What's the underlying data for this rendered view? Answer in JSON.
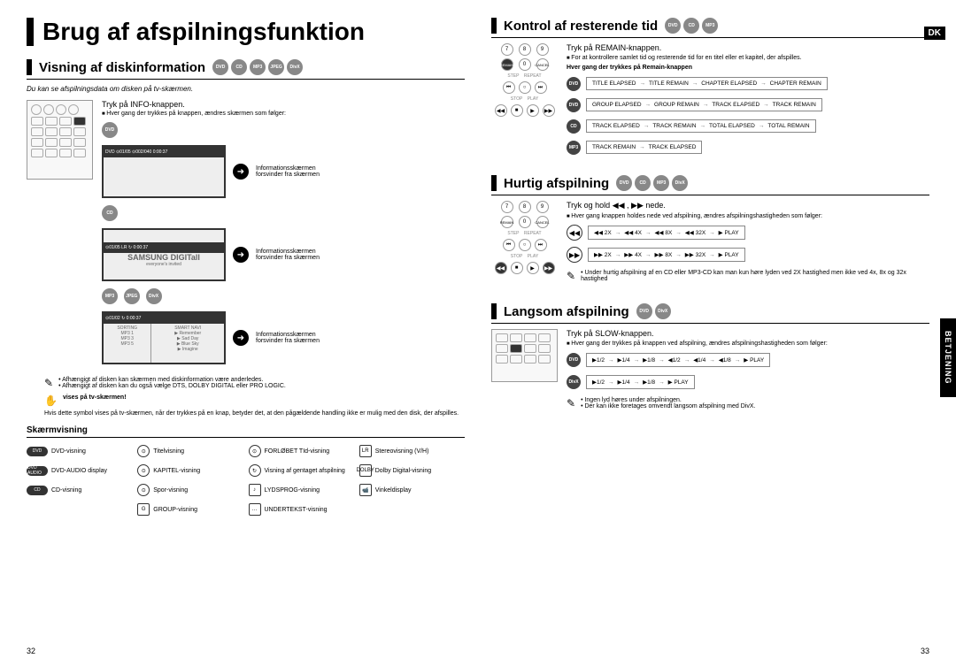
{
  "lang_tag": "DK",
  "side_tab": "BETJENING",
  "page_left": "32",
  "page_right": "33",
  "main_title": "Brug af afspilningsfunktion",
  "left": {
    "section1_title": "Visning af diskinformation",
    "section1_icons": [
      "DVD",
      "CD",
      "MP3",
      "JPEG",
      "DivX"
    ],
    "intro": "Du kan se afspilningsdata om disken på tv-skærmen.",
    "step1": "Tryk på INFO-knappen.",
    "step1_sub": "Hver gang der trykkes på knappen, ændres skærmen som følger:",
    "icon_dvd": "DVD",
    "icon_cd": "CD",
    "icon_mp3": "MP3",
    "icon_jpeg": "JPEG",
    "icon_divx": "DivX",
    "screen_note": "Informationsskærmen forsvinder fra skærmen",
    "screen2_label": "SAMSUNG DIGITall",
    "screen2_sub": "everyone's invited",
    "note1": "Afhængigt af disken kan skærmen med diskinformation være anderledes.",
    "note2": "Afhængigt af disken kan du også vælge DTS, DOLBY DIGITAL eller PRO LOGIC.",
    "warning": "vises på tv-skærmen!",
    "para": "Hvis dette symbol vises på tv-skærmen, når der trykkes på en knap, betyder det, at den pågældende handling ikke er mulig med den disk, der afspilles.",
    "subheading": "Skærmvisning",
    "legend": [
      {
        "icon": "DVD",
        "type": "pill",
        "label": "DVD-visning"
      },
      {
        "icon": "⊙",
        "type": "circle",
        "label": "Titelvisning"
      },
      {
        "icon": "⊙",
        "type": "circle",
        "label": "FORLØBET TId-visning"
      },
      {
        "icon": "LR",
        "type": "box",
        "label": "Stereovisning (V/H)"
      },
      {
        "icon": "DVD AUDIO",
        "type": "pill",
        "label": "DVD-AUDIO display"
      },
      {
        "icon": "⊙",
        "type": "circle",
        "label": "KAPITEL-visning"
      },
      {
        "icon": "↻",
        "type": "circle",
        "label": "Visning af gentaget afspilning"
      },
      {
        "icon": "DOLBY",
        "type": "box",
        "label": "Dolby Digital-visning"
      },
      {
        "icon": "CD",
        "type": "pill",
        "label": "CD-visning"
      },
      {
        "icon": "⊙",
        "type": "circle",
        "label": "Spor-visning"
      },
      {
        "icon": "♪",
        "type": "box",
        "label": "LYDSPROG-visning"
      },
      {
        "icon": "📹",
        "type": "box",
        "label": "Vinkeldisplay"
      },
      {
        "icon": "",
        "type": "none",
        "label": ""
      },
      {
        "icon": "G",
        "type": "box",
        "label": "GROUP-visning"
      },
      {
        "icon": "…",
        "type": "box",
        "label": "UNDERTEKST-visning"
      },
      {
        "icon": "",
        "type": "none",
        "label": ""
      }
    ]
  },
  "right": {
    "section1_title": "Kontrol af resterende tid",
    "section1_icons": [
      "DVD",
      "CD",
      "MP3"
    ],
    "s1_step": "Tryk på REMAIN-knappen.",
    "s1_sub": "For at kontrollere samlet tid og resterende tid for en titel eller et kapitel, der afspilles.",
    "s1_bold": "Hver gang der trykkes på Remain-knappen",
    "s1_seq": [
      {
        "icon": "DVD",
        "items": [
          "TITLE ELAPSED",
          "TITLE REMAIN",
          "CHAPTER ELAPSED",
          "CHAPTER REMAIN"
        ]
      },
      {
        "icon": "DVD",
        "items": [
          "GROUP ELAPSED",
          "GROUP REMAIN",
          "TRACK ELAPSED",
          "TRACK REMAIN"
        ]
      },
      {
        "icon": "CD",
        "items": [
          "TRACK ELAPSED",
          "TRACK REMAIN",
          "TOTAL ELAPSED",
          "TOTAL REMAIN"
        ]
      },
      {
        "icon": "MP3",
        "items": [
          "TRACK REMAIN",
          "TRACK ELAPSED"
        ]
      }
    ],
    "section2_title": "Hurtig afspilning",
    "section2_icons": [
      "DVD",
      "CD",
      "MP3",
      "DivX"
    ],
    "s2_step": "Tryk og hold ◀◀ , ▶▶  nede.",
    "s2_sub": "Hver gang knappen holdes nede ved afspilning, ændres afspilningshastigheden som følger:",
    "s2_speed": [
      {
        "btn": "◀◀",
        "items": [
          "◀◀ 2X",
          "◀◀ 4X",
          "◀◀ 8X",
          "◀◀ 32X",
          "▶ PLAY"
        ]
      },
      {
        "btn": "▶▶",
        "items": [
          "▶▶ 2X",
          "▶▶ 4X",
          "▶▶ 8X",
          "▶▶ 32X",
          "▶ PLAY"
        ]
      }
    ],
    "s2_note": "Under hurtig afspilning af en CD eller MP3-CD kan man kun høre lyden ved 2X hastighed men ikke ved 4x, 8x og 32x hastighed",
    "section3_title": "Langsom afspilning",
    "section3_icons": [
      "DVD",
      "DivX"
    ],
    "s3_step": "Tryk på SLOW-knappen.",
    "s3_sub": "Hver gang der trykkes på knappen ved afspilning, ændres afspilningshastigheden som følger:",
    "s3_speed": [
      {
        "icon": "DVD",
        "items": [
          "▶1/2",
          "▶1/4",
          "▶1/8",
          "◀1/2",
          "◀1/4",
          "◀1/8",
          "▶ PLAY"
        ]
      },
      {
        "icon": "DivX",
        "items": [
          "▶1/2",
          "▶1/4",
          "▶1/8",
          "▶ PLAY"
        ]
      }
    ],
    "s3_note1": "Ingen lyd høres under afspilningen.",
    "s3_note2": "Der kan ikke foretages omvendt langsom afspilning med DivX."
  }
}
